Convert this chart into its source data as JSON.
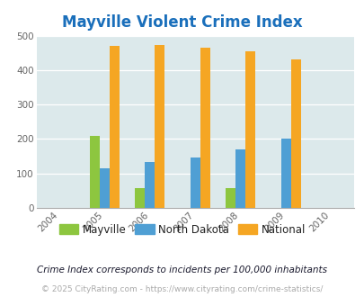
{
  "title": "Mayville Violent Crime Index",
  "all_years": [
    2004,
    2005,
    2006,
    2007,
    2008,
    2009,
    2010
  ],
  "data_years": [
    2005,
    2006,
    2007,
    2008,
    2009
  ],
  "mayville": [
    209,
    57,
    0,
    57,
    0
  ],
  "north_dakota": [
    115,
    132,
    146,
    170,
    202
  ],
  "national": [
    469,
    474,
    466,
    454,
    431
  ],
  "color_mayville": "#8dc63f",
  "color_nd": "#4f9fd4",
  "color_national": "#f5a623",
  "bg_color": "#dce9eb",
  "title_color": "#1a6fbb",
  "ylabel_ticks": [
    0,
    100,
    200,
    300,
    400,
    500
  ],
  "ylim": [
    0,
    500
  ],
  "xlim": [
    2003.5,
    2010.5
  ],
  "footer_note": "Crime Index corresponds to incidents per 100,000 inhabitants",
  "copyright": "© 2025 CityRating.com - https://www.cityrating.com/crime-statistics/",
  "bar_width": 0.22,
  "legend_labels": [
    "Mayville",
    "North Dakota",
    "National"
  ],
  "title_fontsize": 12,
  "tick_fontsize": 7.5,
  "legend_fontsize": 8.5,
  "footer_fontsize": 7.5,
  "copyright_fontsize": 6.5
}
